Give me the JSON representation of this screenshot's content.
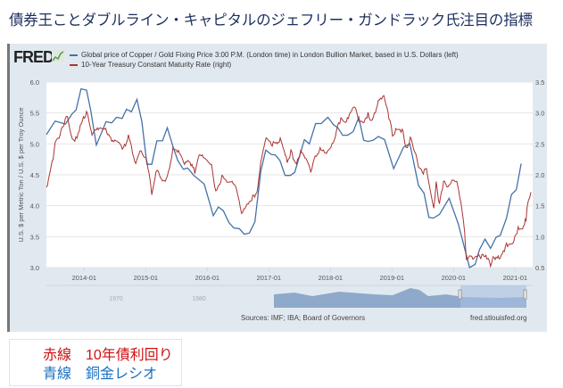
{
  "title": "債券王ことダブルライン・キャピタルのジェフリー・ガンドラック氏注目の指標",
  "logo": "FRED",
  "legend": [
    {
      "label": "Global price of Copper / Gold Fixing Price 3:00 P.M. (London time) in London Bullion Market, based in U.S. Dollars (left)",
      "color": "#4572a7"
    },
    {
      "label": "10-Year Treasury Constant Maturity Rate (right)",
      "color": "#aa3333"
    }
  ],
  "sources": "Sources: IMF; IBA; Board of Governors",
  "site": "fred.stlouisfed.org",
  "note": {
    "red_line": "赤線　10年債利回り",
    "blue_line": "青線　銅金レシオ",
    "red_color": "#cc1111",
    "blue_color": "#1a6fc0"
  },
  "chart_data": {
    "type": "line",
    "ylabel": "U.S. $ per Metric Ton / U.S. $ per Troy Ounce",
    "xlim": [
      "2013-05-22",
      "2021-04-15"
    ],
    "ylim_left": [
      3.0,
      6.0
    ],
    "ylim_right": [
      0.5,
      3.5
    ],
    "yticks_left": [
      "3.0",
      "3.5",
      "4.0",
      "4.5",
      "5.0",
      "5.5",
      "6.0"
    ],
    "yticks_right": [
      "0.5",
      "1.0",
      "1.5",
      "2.0",
      "2.5",
      "3.0",
      "3.5"
    ],
    "xticks": [
      "2014-01",
      "2015-01",
      "2016-01",
      "2017-01",
      "2018-01",
      "2019-01",
      "2020-01",
      "2021-01"
    ],
    "grid": true,
    "legend_placement": "top-left",
    "navigator_labels": [
      "1970",
      "1980"
    ],
    "series": [
      {
        "name": "Global price of Copper / Gold Fixing Price 3:00 P.M. (London time) in London Bullion Market, based in U.S. Dollars (left)",
        "axis": "left",
        "color": "#4572a7",
        "points": [
          [
            "2013-05-22",
            5.15
          ],
          [
            "2013-07-13",
            5.37
          ],
          [
            "2013-09-12",
            5.32
          ],
          [
            "2013-10-19",
            5.48
          ],
          [
            "2013-11-14",
            5.55
          ],
          [
            "2013-12-13",
            5.89
          ],
          [
            "2014-01-15",
            5.87
          ],
          [
            "2014-02-09",
            5.54
          ],
          [
            "2014-03-14",
            4.98
          ],
          [
            "2014-05-11",
            5.36
          ],
          [
            "2014-06-13",
            5.34
          ],
          [
            "2014-07-12",
            5.43
          ],
          [
            "2014-08-14",
            5.41
          ],
          [
            "2014-09-09",
            5.56
          ],
          [
            "2014-10-08",
            5.52
          ],
          [
            "2014-11-10",
            5.72
          ],
          [
            "2014-12-09",
            5.36
          ],
          [
            "2015-01-08",
            4.67
          ],
          [
            "2015-02-06",
            4.67
          ],
          [
            "2015-03-08",
            5.05
          ],
          [
            "2015-04-10",
            5.05
          ],
          [
            "2015-05-09",
            5.26
          ],
          [
            "2015-06-11",
            4.96
          ],
          [
            "2015-07-10",
            4.73
          ],
          [
            "2015-08-12",
            4.59
          ],
          [
            "2015-09-07",
            4.61
          ],
          [
            "2015-10-13",
            4.49
          ],
          [
            "2015-12-14",
            4.35
          ],
          [
            "2016-02-06",
            3.84
          ],
          [
            "2016-03-07",
            3.98
          ],
          [
            "2016-04-05",
            3.92
          ],
          [
            "2016-05-08",
            3.73
          ],
          [
            "2016-06-07",
            3.64
          ],
          [
            "2016-07-09",
            3.63
          ],
          [
            "2016-08-08",
            3.54
          ],
          [
            "2016-09-07",
            3.56
          ],
          [
            "2016-10-10",
            3.74
          ],
          [
            "2016-11-14",
            4.56
          ],
          [
            "2016-12-14",
            4.9
          ],
          [
            "2017-01-15",
            4.83
          ],
          [
            "2017-02-09",
            4.82
          ],
          [
            "2017-03-08",
            4.73
          ],
          [
            "2017-04-07",
            4.49
          ],
          [
            "2017-05-08",
            4.49
          ],
          [
            "2017-06-03",
            4.54
          ],
          [
            "2017-07-31",
            5.07
          ],
          [
            "2017-08-29",
            5.0
          ],
          [
            "2017-10-05",
            5.33
          ],
          [
            "2017-11-07",
            5.33
          ],
          [
            "2017-12-17",
            5.43
          ],
          [
            "2018-01-19",
            5.31
          ],
          [
            "2018-02-14",
            5.26
          ],
          [
            "2018-03-14",
            5.14
          ],
          [
            "2018-04-13",
            5.14
          ],
          [
            "2018-05-16",
            5.2
          ],
          [
            "2018-06-18",
            5.43
          ],
          [
            "2018-07-17",
            5.06
          ],
          [
            "2018-08-12",
            5.04
          ],
          [
            "2018-09-13",
            5.06
          ],
          [
            "2018-10-12",
            5.12
          ],
          [
            "2018-11-18",
            5.07
          ],
          [
            "2019-01-11",
            4.6
          ],
          [
            "2019-03-11",
            4.95
          ],
          [
            "2019-04-17",
            5.0
          ],
          [
            "2019-06-07",
            4.33
          ],
          [
            "2019-07-10",
            4.2
          ],
          [
            "2019-08-08",
            3.81
          ],
          [
            "2019-09-03",
            3.8
          ],
          [
            "2019-10-09",
            3.86
          ],
          [
            "2019-12-06",
            4.12
          ],
          [
            "2020-01-30",
            3.7
          ],
          [
            "2020-04-05",
            3.0
          ],
          [
            "2020-05-08",
            3.05
          ],
          [
            "2020-06-03",
            3.29
          ],
          [
            "2020-07-06",
            3.46
          ],
          [
            "2020-08-08",
            3.31
          ],
          [
            "2020-09-10",
            3.49
          ],
          [
            "2020-10-05",
            3.52
          ],
          [
            "2020-11-11",
            3.8
          ],
          [
            "2020-12-10",
            4.18
          ],
          [
            "2021-01-08",
            4.26
          ],
          [
            "2021-02-06",
            4.68
          ]
        ]
      },
      {
        "name": "10-Year Treasury Constant Maturity Rate (right)",
        "axis": "right",
        "color": "#aa3333",
        "points": [
          [
            "2013-05-22",
            1.8
          ],
          [
            "2013-06-10",
            2.01
          ],
          [
            "2013-06-20",
            2.13
          ],
          [
            "2013-07-01",
            2.24
          ],
          [
            "2013-07-13",
            2.52
          ],
          [
            "2013-08-04",
            2.59
          ],
          [
            "2013-08-18",
            2.74
          ],
          [
            "2013-09-24",
            2.95
          ],
          [
            "2013-10-16",
            2.66
          ],
          [
            "2013-11-06",
            2.54
          ],
          [
            "2013-12-09",
            2.78
          ],
          [
            "2014-01-15",
            3.02
          ],
          [
            "2014-02-17",
            2.64
          ],
          [
            "2014-03-26",
            2.76
          ],
          [
            "2014-05-15",
            2.71
          ],
          [
            "2014-06-13",
            2.57
          ],
          [
            "2014-07-20",
            2.57
          ],
          [
            "2014-08-22",
            2.42
          ],
          [
            "2014-09-20",
            2.62
          ],
          [
            "2014-11-03",
            2.18
          ],
          [
            "2014-11-28",
            2.37
          ],
          [
            "2015-01-08",
            2.23
          ],
          [
            "2015-02-06",
            1.7
          ],
          [
            "2015-03-08",
            2.11
          ],
          [
            "2015-04-10",
            1.92
          ],
          [
            "2015-05-09",
            1.95
          ],
          [
            "2015-06-11",
            2.42
          ],
          [
            "2015-07-14",
            2.37
          ],
          [
            "2015-08-19",
            2.16
          ],
          [
            "2015-09-20",
            2.22
          ],
          [
            "2015-10-19",
            2.04
          ],
          [
            "2015-11-14",
            2.35
          ],
          [
            "2015-12-20",
            2.3
          ],
          [
            "2016-01-26",
            2.16
          ],
          [
            "2016-02-20",
            1.7
          ],
          [
            "2016-03-28",
            1.97
          ],
          [
            "2016-04-26",
            1.86
          ],
          [
            "2016-06-03",
            1.89
          ],
          [
            "2016-07-01",
            1.7
          ],
          [
            "2016-07-23",
            1.41
          ],
          [
            "2016-08-25",
            1.55
          ],
          [
            "2016-09-27",
            1.63
          ],
          [
            "2016-10-27",
            1.76
          ],
          [
            "2016-11-14",
            2.21
          ],
          [
            "2016-12-16",
            2.57
          ],
          [
            "2017-01-15",
            2.5
          ],
          [
            "2017-02-20",
            2.52
          ],
          [
            "2017-03-15",
            2.59
          ],
          [
            "2017-04-20",
            2.21
          ],
          [
            "2017-05-12",
            2.37
          ],
          [
            "2017-06-14",
            2.16
          ],
          [
            "2017-07-09",
            2.37
          ],
          [
            "2017-08-11",
            2.23
          ],
          [
            "2017-09-06",
            2.06
          ],
          [
            "2017-10-09",
            2.33
          ],
          [
            "2017-11-07",
            2.42
          ],
          [
            "2017-12-09",
            2.38
          ],
          [
            "2018-01-11",
            2.49
          ],
          [
            "2018-02-06",
            2.71
          ],
          [
            "2018-03-04",
            2.9
          ],
          [
            "2018-04-06",
            2.82
          ],
          [
            "2018-04-17",
            2.95
          ],
          [
            "2018-05-30",
            3.1
          ],
          [
            "2018-06-18",
            2.9
          ],
          [
            "2018-07-14",
            2.85
          ],
          [
            "2018-08-12",
            2.98
          ],
          [
            "2018-09-07",
            2.87
          ],
          [
            "2018-10-12",
            3.19
          ],
          [
            "2018-11-14",
            3.24
          ],
          [
            "2018-12-14",
            2.93
          ],
          [
            "2019-01-04",
            2.64
          ],
          [
            "2019-01-30",
            2.76
          ],
          [
            "2019-03-08",
            2.71
          ],
          [
            "2019-03-26",
            2.42
          ],
          [
            "2019-04-20",
            2.59
          ],
          [
            "2019-05-23",
            2.33
          ],
          [
            "2019-06-07",
            2.11
          ],
          [
            "2019-07-06",
            2.02
          ],
          [
            "2019-07-24",
            2.11
          ],
          [
            "2019-08-15",
            1.77
          ],
          [
            "2019-09-06",
            1.48
          ],
          [
            "2019-09-20",
            1.87
          ],
          [
            "2019-10-09",
            1.53
          ],
          [
            "2019-11-03",
            1.89
          ],
          [
            "2019-11-29",
            1.77
          ],
          [
            "2019-12-28",
            1.92
          ],
          [
            "2020-01-26",
            1.84
          ],
          [
            "2020-02-14",
            1.58
          ],
          [
            "2020-03-07",
            1.1
          ],
          [
            "2020-03-17",
            0.62
          ],
          [
            "2020-04-05",
            0.69
          ],
          [
            "2020-05-08",
            0.66
          ],
          [
            "2020-06-18",
            0.69
          ],
          [
            "2020-07-17",
            0.66
          ],
          [
            "2020-08-08",
            0.52
          ],
          [
            "2020-08-23",
            0.68
          ],
          [
            "2020-09-28",
            0.66
          ],
          [
            "2020-11-11",
            0.86
          ],
          [
            "2020-12-24",
            0.92
          ],
          [
            "2021-01-19",
            1.12
          ],
          [
            "2021-02-14",
            1.1
          ],
          [
            "2021-02-25",
            1.19
          ],
          [
            "2021-03-07",
            1.29
          ],
          [
            "2021-03-14",
            1.53
          ],
          [
            "2021-04-05",
            1.72
          ]
        ]
      }
    ]
  }
}
